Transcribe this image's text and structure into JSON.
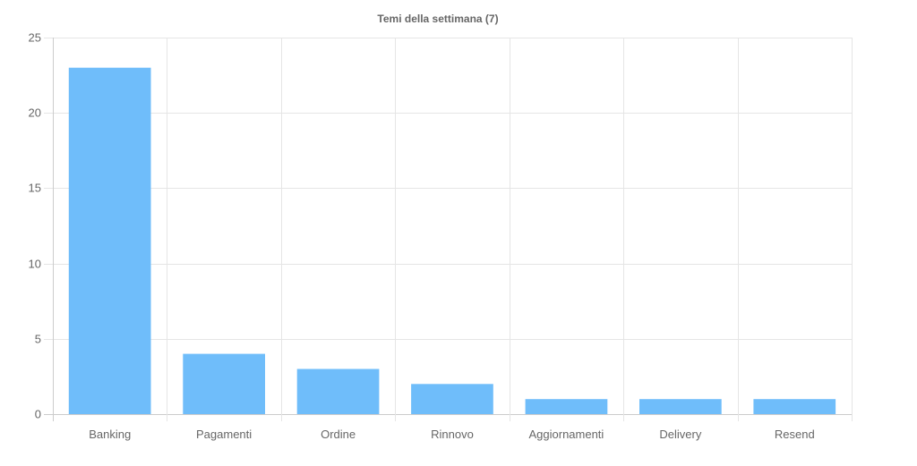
{
  "chart_data": {
    "type": "bar",
    "title": "Temi della settimana (7)",
    "categories": [
      "Banking",
      "Pagamenti",
      "Ordine",
      "Rinnovo",
      "Aggiornamenti",
      "Delivery",
      "Resend"
    ],
    "values": [
      23,
      4,
      3,
      2,
      1,
      1,
      1
    ],
    "xlabel": "",
    "ylabel": "",
    "ylim": [
      0,
      25
    ],
    "yticks": [
      "0",
      "5",
      "10",
      "15",
      "20",
      "25"
    ],
    "grid": true,
    "legend": "none",
    "bar_color": "#6fbdfa",
    "grid_color": "#e5e5e5",
    "text_color": "#666666"
  }
}
